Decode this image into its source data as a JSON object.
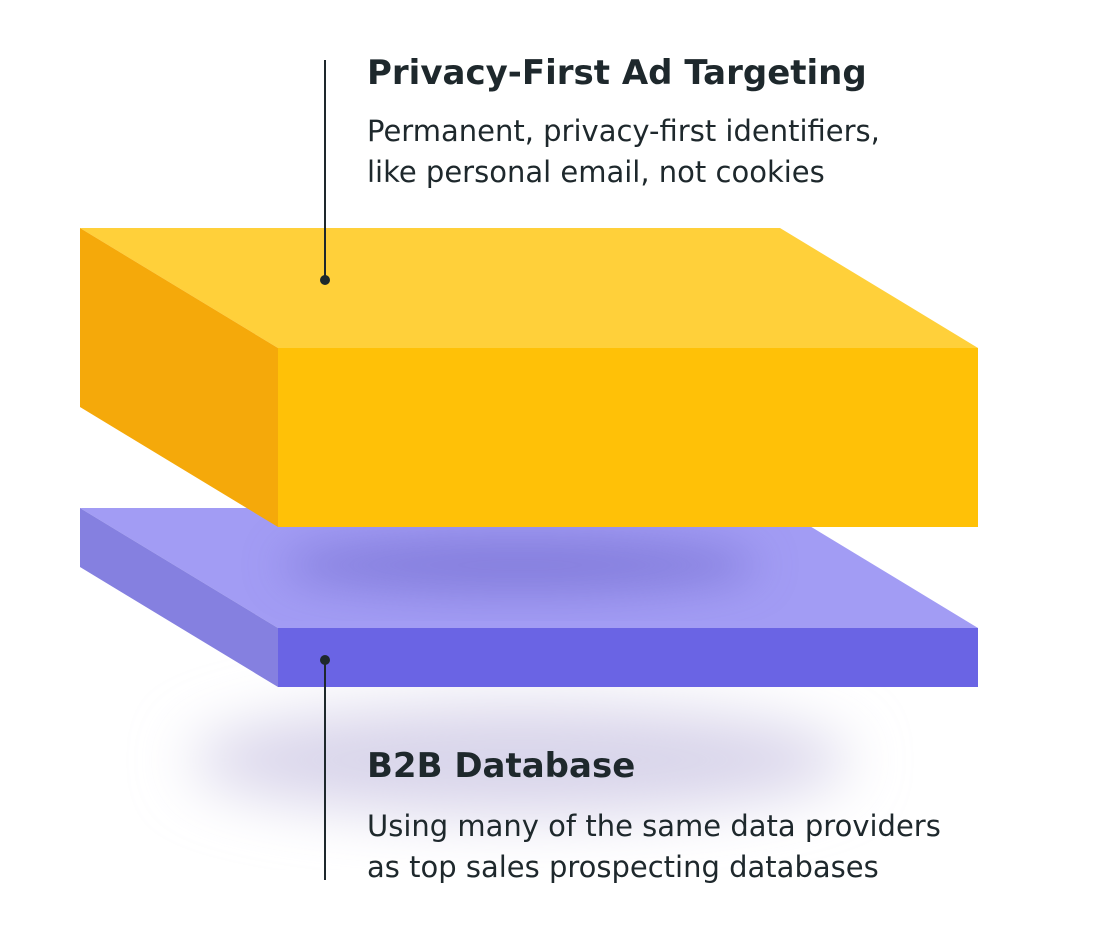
{
  "layers": [
    {
      "title": "Privacy-First Ad Targeting",
      "description": [
        "Permanent, privacy-first identifiers,",
        "like personal email, not cookies"
      ]
    },
    {
      "title": "B2B Database",
      "description": [
        "Using many of the same data providers",
        "as top sales prospecting databases"
      ]
    }
  ]
}
